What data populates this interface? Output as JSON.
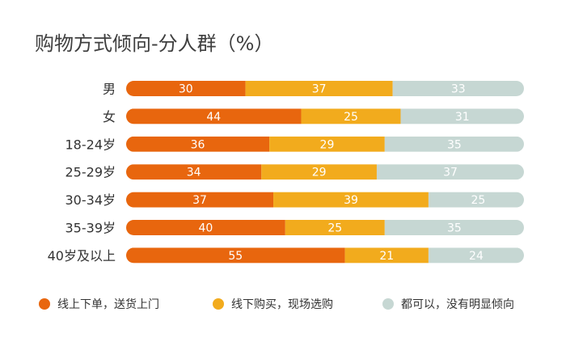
{
  "chart_data": {
    "type": "bar",
    "orientation": "horizontal",
    "stacked": true,
    "normalized": true,
    "title": "购物方式倾向-分人群（%）",
    "xlabel": "",
    "ylabel": "",
    "xlim": [
      0,
      100
    ],
    "grid": false,
    "legend": "bottom",
    "categories": [
      "男",
      "女",
      "18-24岁",
      "25-29岁",
      "30-34岁",
      "35-39岁",
      "40岁及以上"
    ],
    "series": [
      {
        "name": "线上下单，送货上门",
        "color": "#e8660e",
        "values": [
          30,
          44,
          36,
          34,
          37,
          40,
          55
        ]
      },
      {
        "name": "线下购买，现场选购",
        "color": "#f2ab1d",
        "values": [
          37,
          25,
          29,
          29,
          39,
          25,
          21
        ]
      },
      {
        "name": "都可以，没有明显倾向",
        "color": "#c6d7d3",
        "values": [
          33,
          31,
          35,
          37,
          25,
          35,
          24
        ]
      }
    ]
  }
}
